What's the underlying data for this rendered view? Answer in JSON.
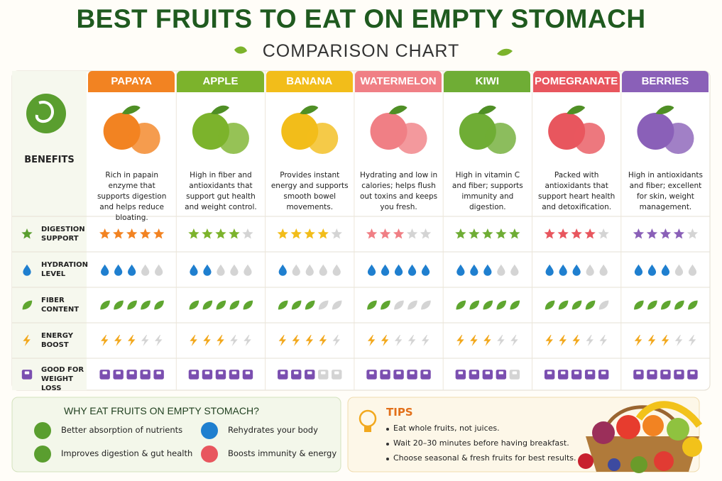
{
  "header": {
    "title": "BEST FRUITS TO EAT ON EMPTY STOMACH",
    "subtitle": "COMPARISON CHART"
  },
  "table": {
    "benefits_label": "BENEFITS",
    "max_rating": 5,
    "fruits": [
      {
        "name": "PAPAYA",
        "color": "#f28322",
        "benefit": "Rich in papain enzyme that supports digestion and helps reduce bloating."
      },
      {
        "name": "APPLE",
        "color": "#7cb32c",
        "benefit": "High in fiber and antioxidants that support gut health and weight control."
      },
      {
        "name": "BANANA",
        "color": "#f2bd1a",
        "benefit": "Provides instant energy and supports smooth bowel movements."
      },
      {
        "name": "WATERMELON",
        "color": "#f07f85",
        "benefit": "Hydrating and low in calories; helps flush out toxins and keeps you fresh."
      },
      {
        "name": "KIWI",
        "color": "#6fad35",
        "benefit": "High in vitamin C and fiber; supports immunity and digestion."
      },
      {
        "name": "POMEGRANATE",
        "color": "#e8565e",
        "benefit": "Packed with antioxidants that support heart health and detoxification."
      },
      {
        "name": "BERRIES",
        "color": "#8a60b8",
        "benefit": "High in antioxidants and fiber; excellent for skin, weight management."
      }
    ],
    "rows": [
      {
        "label": "DIGESTION SUPPORT",
        "icon": "star",
        "ratings": [
          5,
          4,
          4,
          3,
          5,
          4,
          4
        ]
      },
      {
        "label": "HYDRATION LEVEL",
        "icon": "drop",
        "color": "#1f7fcf",
        "ratings": [
          3,
          2,
          1,
          5,
          3,
          3,
          3
        ]
      },
      {
        "label": "FIBER CONTENT",
        "icon": "leaf",
        "color": "#5fa630",
        "ratings": [
          5,
          5,
          3,
          2,
          5,
          4,
          5
        ]
      },
      {
        "label": "ENERGY BOOST",
        "icon": "bolt",
        "color": "#f2a81d",
        "ratings": [
          3,
          3,
          4,
          2,
          3,
          3,
          3
        ]
      },
      {
        "label": "GOOD FOR WEIGHT LOSS",
        "icon": "scale",
        "color": "#7b4fb0",
        "ratings": [
          5,
          5,
          3,
          5,
          4,
          5,
          5
        ]
      }
    ]
  },
  "why": {
    "title": "WHY EAT FRUITS ON EMPTY STOMACH?",
    "items": [
      "Better absorption of nutrients",
      "Rehydrates your body",
      "Improves digestion & gut health",
      "Boosts immunity & energy"
    ]
  },
  "tips": {
    "title": "TIPS",
    "items": [
      "Eat whole fruits, not juices.",
      "Wait 20–30 minutes before having breakfast.",
      "Choose seasonal & fresh fruits for best results."
    ]
  }
}
